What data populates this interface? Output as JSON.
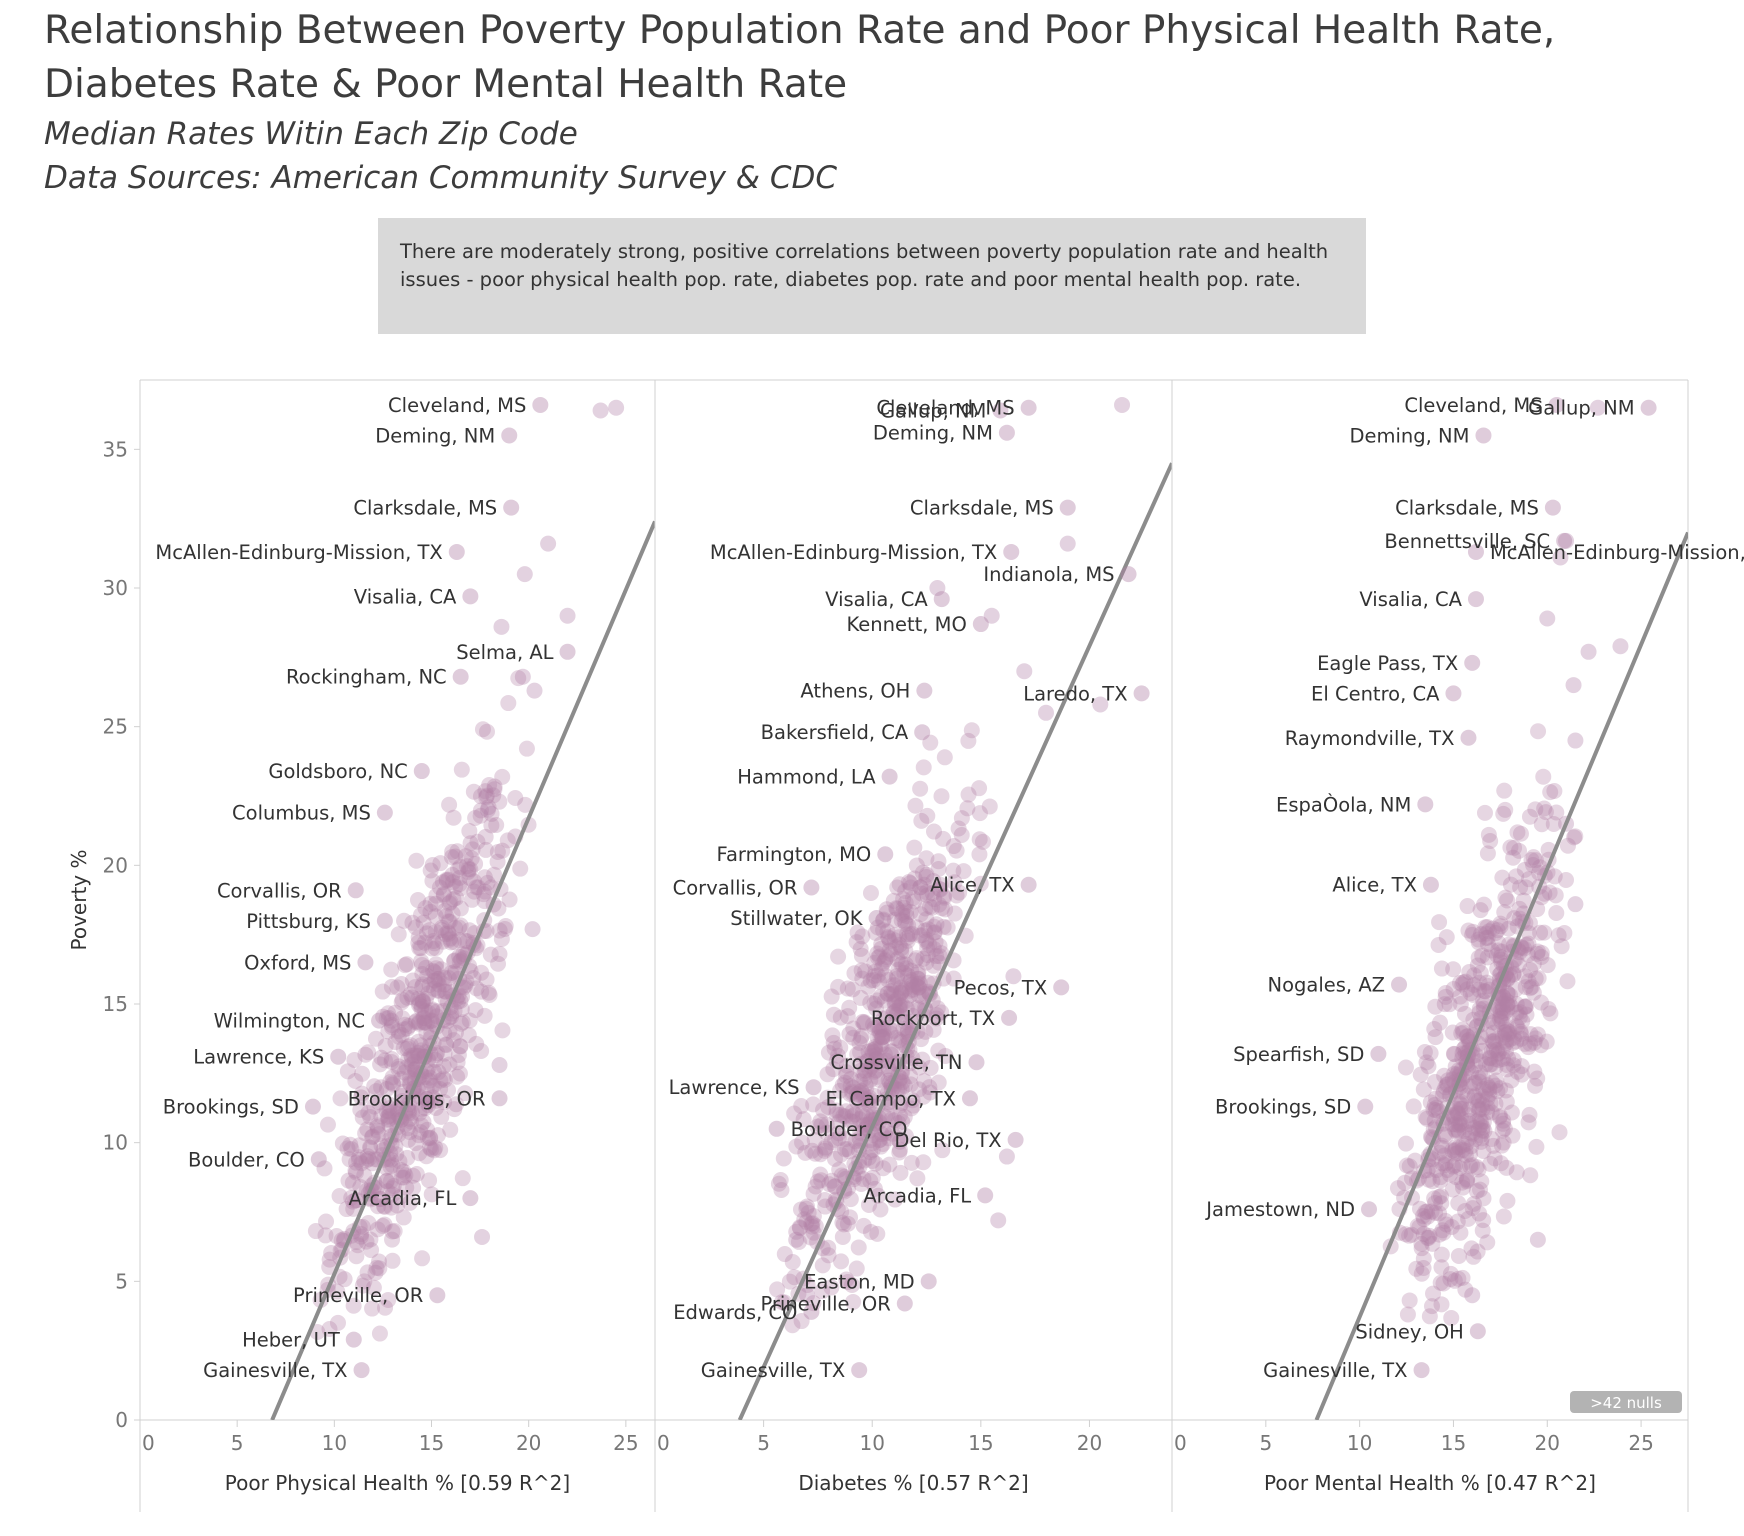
{
  "title": "Relationship Between Poverty Population Rate and Poor Physical Health Rate, Diabetes Rate & Poor Mental Health Rate",
  "subtitle1": "Median Rates Witin Each Zip Code",
  "subtitle2": "Data Sources: American Community Survey & CDC",
  "annotation": "There are moderately strong, positive correlations between poverty population rate and health issues - poor physical health pop. rate, diabetes pop. rate and poor mental health pop. rate.",
  "colors": {
    "point": "#b07fa6",
    "trend": "#8c8c8c",
    "axis": "#d0d0d0",
    "nulls_badge": "#b3b3b3"
  },
  "chart_data": [
    {
      "type": "scatter",
      "xlabel": "Poor Physical Health % [0.59 R^2]",
      "ylabel": "Poverty %",
      "xlim": [
        0,
        26.5
      ],
      "ylim": [
        0,
        37.5
      ],
      "xticks": [
        0,
        5,
        10,
        15,
        20,
        25
      ],
      "yticks": [
        0,
        5,
        10,
        15,
        20,
        25,
        30,
        35
      ],
      "trend": {
        "x1": 6.8,
        "y1": 0,
        "x2": 26.5,
        "y2": 32.4
      },
      "cloud": {
        "center": [
          14.5,
          13.5
        ],
        "n": 650,
        "slope": 1.55,
        "x_sd": 2.3,
        "noise_sd": 2.8,
        "xlim": [
          9,
          20
        ],
        "ylim": [
          3,
          28
        ]
      },
      "labeled_points": [
        {
          "label": "Cleveland, MS",
          "x": 20.6,
          "y": 36.6
        },
        {
          "label": "Deming, NM",
          "x": 19.0,
          "y": 35.5
        },
        {
          "label": "Clarksdale, MS",
          "x": 19.1,
          "y": 32.9
        },
        {
          "label": "McAllen-Edinburg-Mission, TX",
          "x": 16.3,
          "y": 31.3
        },
        {
          "label": "Visalia, CA",
          "x": 17.0,
          "y": 29.7
        },
        {
          "label": "Rockingham, NC",
          "x": 16.5,
          "y": 26.8
        },
        {
          "label": "Selma, AL",
          "x": 22.0,
          "y": 27.7
        },
        {
          "label": "Goldsboro, NC",
          "x": 14.5,
          "y": 23.4
        },
        {
          "label": "Columbus, MS",
          "x": 12.6,
          "y": 21.9
        },
        {
          "label": "Corvallis, OR",
          "x": 11.1,
          "y": 19.1
        },
        {
          "label": "Pittsburg, KS",
          "x": 12.6,
          "y": 18.0
        },
        {
          "label": "Oxford, MS",
          "x": 11.6,
          "y": 16.5
        },
        {
          "label": "Wilmington, NC",
          "x": 12.3,
          "y": 14.4
        },
        {
          "label": "Lawrence, KS",
          "x": 10.2,
          "y": 13.1
        },
        {
          "label": "Brookings, SD",
          "x": 8.9,
          "y": 11.3
        },
        {
          "label": "Brookings, OR",
          "x": 18.5,
          "y": 11.6
        },
        {
          "label": "Boulder, CO",
          "x": 9.2,
          "y": 9.4
        },
        {
          "label": "Arcadia, FL",
          "x": 17.0,
          "y": 8.0
        },
        {
          "label": "Prineville, OR",
          "x": 15.3,
          "y": 4.5
        },
        {
          "label": "Heber, UT",
          "x": 11.0,
          "y": 2.9
        },
        {
          "label": "Gainesville, TX",
          "x": 11.4,
          "y": 1.8
        }
      ],
      "extra_points": [
        [
          23.7,
          36.4
        ],
        [
          24.5,
          36.5
        ],
        [
          21.0,
          31.6
        ],
        [
          19.8,
          30.5
        ],
        [
          22.0,
          29.0
        ],
        [
          18.6,
          28.6
        ],
        [
          19.7,
          26.8
        ],
        [
          20.3,
          26.3
        ],
        [
          17.9,
          22.0
        ],
        [
          20.2,
          17.7
        ],
        [
          18.5,
          12.8
        ],
        [
          17.6,
          6.6
        ]
      ]
    },
    {
      "type": "scatter",
      "xlabel": "Diabetes % [0.57 R^2]",
      "ylabel": "",
      "xlim": [
        0,
        23.8
      ],
      "ylim": [
        0,
        37.5
      ],
      "xticks": [
        0,
        5,
        10,
        15,
        20
      ],
      "yticks": [],
      "trend": {
        "x1": 3.9,
        "y1": 0,
        "x2": 23.8,
        "y2": 34.5
      },
      "cloud": {
        "center": [
          10.5,
          13.5
        ],
        "n": 650,
        "slope": 1.7,
        "x_sd": 2.0,
        "noise_sd": 2.8,
        "xlim": [
          5.5,
          16.5
        ],
        "ylim": [
          3,
          28
        ]
      },
      "labeled_points": [
        {
          "label": "Cleveland, MS",
          "x": 17.2,
          "y": 36.5
        },
        {
          "label": "Gallup, NM",
          "x": 15.9,
          "y": 36.4
        },
        {
          "label": "Deming, NM",
          "x": 16.2,
          "y": 35.6
        },
        {
          "label": "Clarksdale, MS",
          "x": 19.0,
          "y": 32.9
        },
        {
          "label": "McAllen-Edinburg-Mission, TX",
          "x": 16.4,
          "y": 31.3
        },
        {
          "label": "Indianola, MS",
          "x": 21.8,
          "y": 30.5
        },
        {
          "label": "Visalia, CA",
          "x": 13.2,
          "y": 29.6
        },
        {
          "label": "Kennett, MO",
          "x": 15.0,
          "y": 28.7
        },
        {
          "label": "Athens, OH",
          "x": 12.4,
          "y": 26.3
        },
        {
          "label": "Laredo, TX",
          "x": 22.4,
          "y": 26.2
        },
        {
          "label": "Bakersfield, CA",
          "x": 12.3,
          "y": 24.8
        },
        {
          "label": "Hammond, LA",
          "x": 10.8,
          "y": 23.2
        },
        {
          "label": "Farmington, MO",
          "x": 10.6,
          "y": 20.4
        },
        {
          "label": "Alice, TX",
          "x": 17.2,
          "y": 19.3
        },
        {
          "label": "Corvallis, OR",
          "x": 7.2,
          "y": 19.2
        },
        {
          "label": "Stillwater, OK",
          "x": 10.2,
          "y": 18.1
        },
        {
          "label": "Pecos, TX",
          "x": 18.7,
          "y": 15.6
        },
        {
          "label": "Rockport, TX",
          "x": 16.3,
          "y": 14.5
        },
        {
          "label": "Crossville, TN",
          "x": 14.8,
          "y": 12.9
        },
        {
          "label": "Lawrence, KS",
          "x": 7.3,
          "y": 12.0
        },
        {
          "label": "El Campo, TX",
          "x": 14.5,
          "y": 11.6
        },
        {
          "label": "Boulder, CO",
          "x": 5.6,
          "y": 10.5
        },
        {
          "label": "Del Rio, TX",
          "x": 16.6,
          "y": 10.1
        },
        {
          "label": "Arcadia, FL",
          "x": 15.2,
          "y": 8.1
        },
        {
          "label": "Easton, MD",
          "x": 12.6,
          "y": 5.0
        },
        {
          "label": "Edwards, CO",
          "x": 7.2,
          "y": 3.9
        },
        {
          "label": "Prineville, OR",
          "x": 11.5,
          "y": 4.2
        },
        {
          "label": "Gainesville, TX",
          "x": 9.4,
          "y": 1.8
        }
      ],
      "extra_points": [
        [
          21.5,
          36.6
        ],
        [
          19.0,
          31.6
        ],
        [
          20.5,
          25.8
        ],
        [
          17.0,
          27.0
        ],
        [
          18.0,
          25.5
        ],
        [
          15.5,
          29.0
        ],
        [
          13.0,
          30.0
        ],
        [
          16.5,
          16.0
        ],
        [
          16.2,
          9.5
        ],
        [
          15.8,
          7.2
        ],
        [
          6.5,
          6.5
        ],
        [
          7.0,
          4.5
        ]
      ]
    },
    {
      "type": "scatter",
      "xlabel": "Poor Mental Health % [0.47 R^2]",
      "ylabel": "",
      "xlim": [
        0,
        27.5
      ],
      "ylim": [
        0,
        37.5
      ],
      "xticks": [
        0,
        5,
        10,
        15,
        20,
        25
      ],
      "yticks": [],
      "trend": {
        "x1": 7.7,
        "y1": 0,
        "x2": 27.5,
        "y2": 32.0
      },
      "cloud": {
        "center": [
          16.5,
          13.0
        ],
        "n": 650,
        "slope": 1.45,
        "x_sd": 2.0,
        "noise_sd": 3.0,
        "xlim": [
          11,
          21.5
        ],
        "ylim": [
          3,
          28
        ]
      },
      "labeled_points": [
        {
          "label": "Cleveland, MS",
          "x": 20.5,
          "y": 36.6
        },
        {
          "label": "Gallup, NM",
          "x": 25.4,
          "y": 36.5
        },
        {
          "label": "Deming, NM",
          "x": 16.6,
          "y": 35.5
        },
        {
          "label": "Clarksdale, MS",
          "x": 20.3,
          "y": 32.9
        },
        {
          "label": "McAllen-Edinburg-Mission, TX",
          "x": 16.2,
          "y": 31.3
        },
        {
          "label": "Bennettsville, SC",
          "x": 20.9,
          "y": 31.7
        },
        {
          "label": "Visalia, CA",
          "x": 16.2,
          "y": 29.6
        },
        {
          "label": "Eagle Pass, TX",
          "x": 16.0,
          "y": 27.3
        },
        {
          "label": "El Centro, CA",
          "x": 15.0,
          "y": 26.2
        },
        {
          "label": "Raymondville, TX",
          "x": 15.8,
          "y": 24.6
        },
        {
          "label": "EspaÒola, NM",
          "x": 13.5,
          "y": 22.2
        },
        {
          "label": "Alice, TX",
          "x": 13.8,
          "y": 19.3
        },
        {
          "label": "Nogales, AZ",
          "x": 12.1,
          "y": 15.7
        },
        {
          "label": "Spearfish, SD",
          "x": 11.0,
          "y": 13.2
        },
        {
          "label": "Brookings, SD",
          "x": 10.3,
          "y": 11.3
        },
        {
          "label": "Jamestown, ND",
          "x": 10.5,
          "y": 7.6
        },
        {
          "label": "Sidney, OH",
          "x": 16.3,
          "y": 3.2
        },
        {
          "label": "Gainesville, TX",
          "x": 13.3,
          "y": 1.8
        }
      ],
      "extra_points": [
        [
          22.7,
          36.5
        ],
        [
          21.0,
          31.7
        ],
        [
          20.7,
          31.1
        ],
        [
          20.0,
          28.9
        ],
        [
          23.9,
          27.9
        ],
        [
          21.4,
          26.5
        ],
        [
          22.2,
          27.7
        ],
        [
          21.5,
          24.5
        ],
        [
          21.0,
          21.5
        ],
        [
          21.5,
          18.6
        ],
        [
          19.5,
          6.5
        ],
        [
          16.0,
          4.5
        ]
      ]
    }
  ],
  "nulls_badge": ">42 nulls"
}
